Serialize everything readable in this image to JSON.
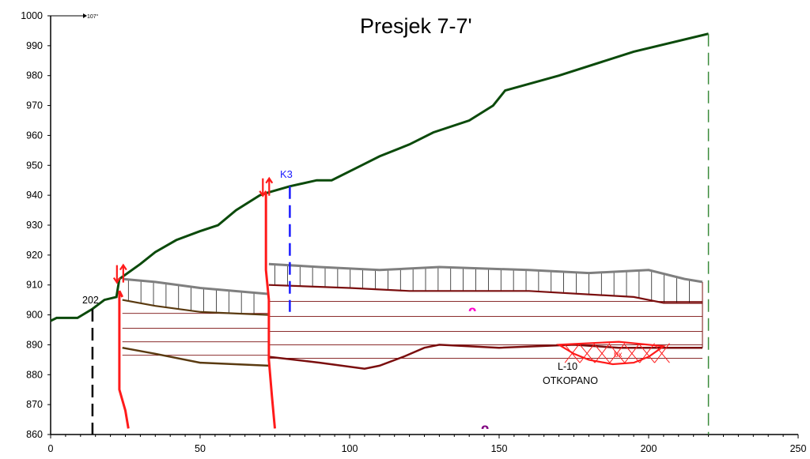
{
  "title": "Presjek 7-7'",
  "direction_label": "107°",
  "axes": {
    "x_ticks": [
      "0",
      "50",
      "100",
      "150",
      "200",
      "250"
    ],
    "y_ticks": [
      "860",
      "870",
      "880",
      "890",
      "900",
      "910",
      "920",
      "930",
      "940",
      "950",
      "960",
      "970",
      "980",
      "990",
      "1000"
    ],
    "xlim": [
      0,
      250
    ],
    "ylim": [
      860,
      1000
    ]
  },
  "labels": {
    "borehole_202": "202",
    "borehole_k3": "K3",
    "seam_symbol": "ᴖ",
    "mined_zone": "L-10",
    "mined_status": "OTKOPANO",
    "mined_code": "bx",
    "bottom_symbol": "ᴖ"
  },
  "colors": {
    "terrain": "#0b4a0b",
    "fault": "#ff1a1a",
    "layer": "#7a0e0e",
    "hatch": "#7f7f7f",
    "borehole_k3": "#1a1aff",
    "seam_symbol": "#ff00cc",
    "bottom_symbol": "#800080",
    "end_line": "#3a8a3a"
  },
  "chart_data": {
    "type": "geologic-cross-section",
    "title": "Presjek 7-7'",
    "x": [
      0,
      250
    ],
    "y": [
      860,
      1000
    ],
    "terrain_profile": [
      [
        0,
        898
      ],
      [
        2,
        899
      ],
      [
        9,
        899
      ],
      [
        14,
        902
      ],
      [
        18,
        905
      ],
      [
        22,
        906
      ],
      [
        23,
        912
      ],
      [
        30,
        917
      ],
      [
        35,
        921
      ],
      [
        42,
        925
      ],
      [
        50,
        928
      ],
      [
        56,
        930
      ],
      [
        62,
        935
      ],
      [
        70,
        940
      ],
      [
        73,
        941
      ],
      [
        80,
        943
      ],
      [
        89,
        945
      ],
      [
        94,
        945
      ],
      [
        104,
        950
      ],
      [
        110,
        953
      ],
      [
        120,
        957
      ],
      [
        128,
        961
      ],
      [
        140,
        965
      ],
      [
        148,
        970
      ],
      [
        152,
        975
      ],
      [
        170,
        980
      ],
      [
        195,
        988
      ],
      [
        220,
        994
      ]
    ],
    "fault_1": [
      [
        24,
        906
      ],
      [
        23,
        908
      ],
      [
        23,
        895
      ],
      [
        23,
        875
      ],
      [
        25,
        868
      ],
      [
        26,
        862
      ]
    ],
    "fault_2": [
      [
        72,
        941
      ],
      [
        72,
        930
      ],
      [
        72,
        915
      ],
      [
        73,
        905
      ],
      [
        73,
        895
      ],
      [
        73,
        885
      ],
      [
        74,
        873
      ],
      [
        75,
        862
      ]
    ],
    "overburden_top_left": [
      [
        24,
        912
      ],
      [
        35,
        911
      ],
      [
        50,
        909
      ],
      [
        73,
        907
      ]
    ],
    "coal_top_left": [
      [
        24,
        905
      ],
      [
        35,
        903
      ],
      [
        50,
        901
      ],
      [
        73,
        900
      ]
    ],
    "coal_bottom_left": [
      [
        24,
        889
      ],
      [
        35,
        887
      ],
      [
        50,
        884
      ],
      [
        73,
        883
      ]
    ],
    "overburden_top_right": [
      [
        73,
        917
      ],
      [
        90,
        916
      ],
      [
        110,
        915
      ],
      [
        130,
        916
      ],
      [
        160,
        915
      ],
      [
        180,
        914
      ],
      [
        200,
        915
      ],
      [
        212,
        912
      ],
      [
        218,
        911
      ]
    ],
    "coal_top_right": [
      [
        73,
        910
      ],
      [
        100,
        909
      ],
      [
        120,
        908
      ],
      [
        160,
        908
      ],
      [
        195,
        906
      ],
      [
        205,
        904
      ],
      [
        218,
        904
      ]
    ],
    "coal_bottom_right": [
      [
        73,
        886
      ],
      [
        90,
        884
      ],
      [
        105,
        882
      ],
      [
        110,
        883
      ],
      [
        118,
        886
      ],
      [
        125,
        889
      ],
      [
        130,
        890
      ],
      [
        150,
        889
      ],
      [
        175,
        890
      ],
      [
        190,
        889
      ],
      [
        205,
        889
      ],
      [
        218,
        889
      ]
    ],
    "borehole_202_x": 14,
    "borehole_k3_x": 80,
    "mined_zone_x": [
      170,
      205
    ]
  }
}
